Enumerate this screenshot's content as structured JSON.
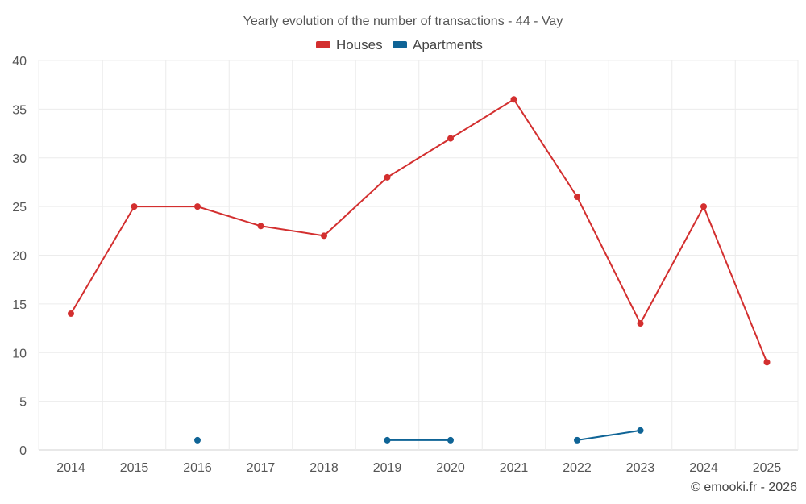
{
  "chart_data": {
    "type": "line",
    "title": "Yearly evolution of the number of transactions - 44 - Vay",
    "categories": [
      "2014",
      "2015",
      "2016",
      "2017",
      "2018",
      "2019",
      "2020",
      "2021",
      "2022",
      "2023",
      "2024",
      "2025"
    ],
    "series": [
      {
        "name": "Houses",
        "color": "#d32f2f",
        "values": [
          14,
          25,
          25,
          23,
          22,
          28,
          32,
          36,
          26,
          13,
          25,
          9
        ]
      },
      {
        "name": "Apartments",
        "color": "#0f6496",
        "values": [
          null,
          null,
          1,
          null,
          null,
          1,
          1,
          null,
          1,
          2,
          null,
          null
        ]
      }
    ],
    "xlabel": "",
    "ylabel": "",
    "ylim": [
      0,
      40
    ],
    "yticks": [
      0,
      5,
      10,
      15,
      20,
      25,
      30,
      35,
      40
    ],
    "grid": true,
    "legend_position": "top-center"
  },
  "credit": "© emooki.fr - 2026"
}
